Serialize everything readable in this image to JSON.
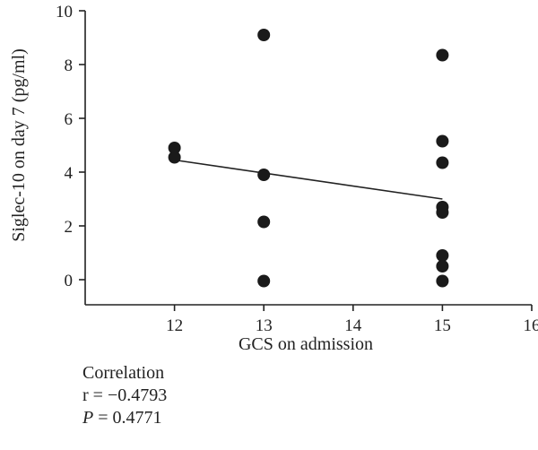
{
  "chart_data": {
    "type": "scatter",
    "xlabel": "GCS on admission",
    "ylabel": "Siglec-10 on day 7 (pg/ml)",
    "xlim": [
      11,
      16
    ],
    "ylim": [
      0,
      10
    ],
    "x_ticks": [
      "12",
      "13",
      "14",
      "15",
      "16"
    ],
    "y_ticks": [
      "0",
      "2",
      "4",
      "6",
      "8",
      "10"
    ],
    "points": [
      {
        "x": 12,
        "y": 4.9
      },
      {
        "x": 12,
        "y": 4.55
      },
      {
        "x": 13,
        "y": 9.1
      },
      {
        "x": 13,
        "y": 3.9
      },
      {
        "x": 13,
        "y": 2.15
      },
      {
        "x": 13,
        "y": -0.05
      },
      {
        "x": 15,
        "y": 8.35
      },
      {
        "x": 15,
        "y": 5.15
      },
      {
        "x": 15,
        "y": 4.35
      },
      {
        "x": 15,
        "y": 2.7
      },
      {
        "x": 15,
        "y": 2.5
      },
      {
        "x": 15,
        "y": 0.9
      },
      {
        "x": 15,
        "y": 0.5
      },
      {
        "x": 15,
        "y": -0.05
      }
    ],
    "regression_line": {
      "x": [
        12,
        15
      ],
      "y": [
        4.45,
        3.0
      ]
    },
    "grid": false,
    "legend": "none"
  },
  "stats": {
    "title": "Correlation",
    "r_label": "r",
    "r_value": "= −0.4793",
    "p_label": "P",
    "p_value": "= 0.4771"
  }
}
